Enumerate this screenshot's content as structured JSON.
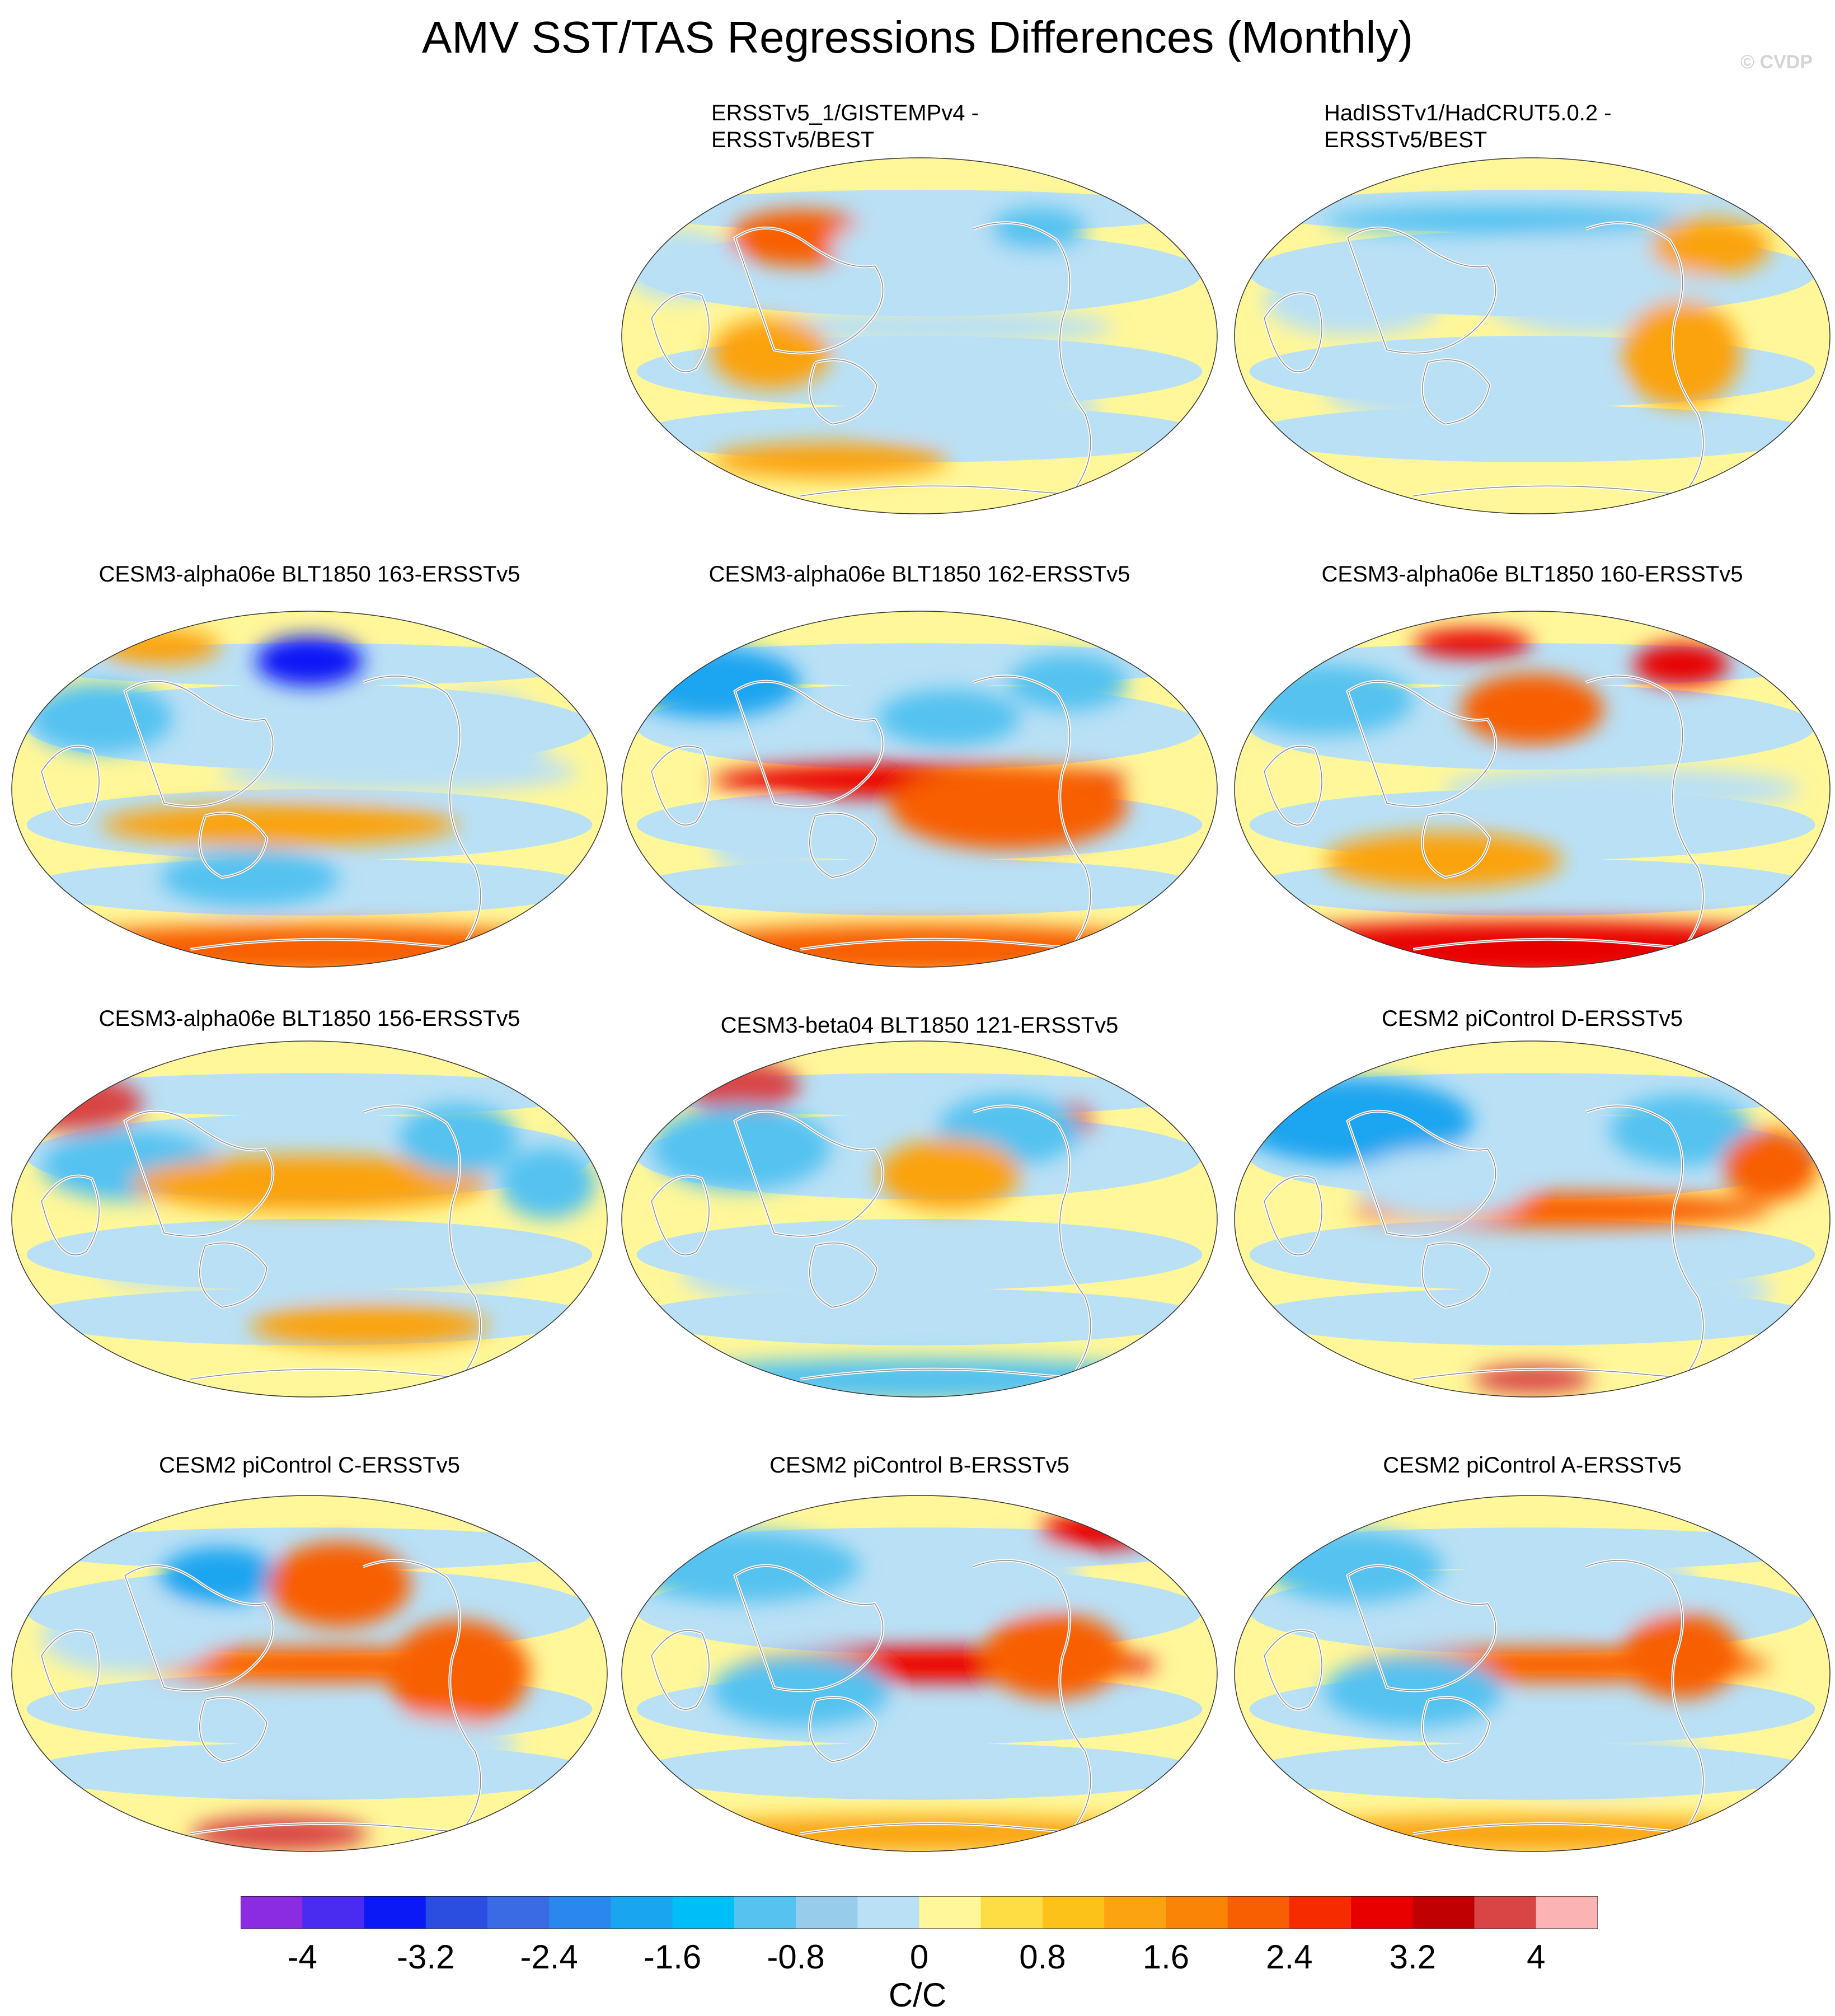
{
  "title": "AMV SST/TAS Regressions Differences (Monthly)",
  "watermark": "© CVDP",
  "panels": [
    {
      "title_line1": "ERSSTv5_1/GISTEMPv4 -",
      "title_line2": "ERSSTv5/BEST",
      "blobs": [
        [
          -0.4,
          0.55,
          0.12,
          0.08,
          1.6
        ],
        [
          -0.1,
          0.5,
          0.1,
          0.07,
          -0.8
        ],
        [
          0.3,
          0.4,
          0.15,
          0.1,
          -0.8
        ],
        [
          0.05,
          0.05,
          0.3,
          0.05,
          -0.8
        ],
        [
          -0.5,
          -0.1,
          0.1,
          0.1,
          0.8
        ],
        [
          0.4,
          0.6,
          0.08,
          0.06,
          -1.6
        ],
        [
          -0.8,
          0.4,
          0.1,
          0.1,
          -0.8
        ],
        [
          0.2,
          -0.4,
          0.2,
          0.08,
          -0.8
        ],
        [
          -0.3,
          -0.7,
          0.2,
          0.05,
          0.8
        ]
      ]
    },
    {
      "title_line1": "HadISSTv1/HadCRUT5.0.2 -",
      "title_line2": "ERSSTv5/BEST",
      "blobs": [
        [
          -0.6,
          0.2,
          0.15,
          0.1,
          -0.8
        ],
        [
          0.2,
          0.3,
          0.2,
          0.15,
          -0.8
        ],
        [
          -0.2,
          -0.3,
          0.25,
          0.1,
          -0.8
        ],
        [
          0.5,
          -0.1,
          0.1,
          0.15,
          0.8
        ],
        [
          -0.1,
          0.65,
          0.3,
          0.04,
          -1.6
        ],
        [
          0.6,
          0.5,
          0.1,
          0.08,
          0.8
        ]
      ]
    },
    {
      "title_line1": "CESM3-alpha06e BLT1850 163-ERSSTv5",
      "title_line2": "",
      "blobs": [
        [
          0.0,
          0.72,
          0.09,
          0.07,
          -4.0
        ],
        [
          -0.7,
          0.4,
          0.12,
          0.1,
          -1.6
        ],
        [
          0.3,
          0.1,
          0.3,
          0.06,
          -0.8
        ],
        [
          -0.1,
          -0.2,
          0.3,
          0.06,
          0.8
        ],
        [
          0.0,
          -0.9,
          0.5,
          0.07,
          1.6
        ],
        [
          -0.5,
          0.8,
          0.1,
          0.05,
          0.8
        ],
        [
          0.6,
          0.3,
          0.1,
          0.12,
          -0.8
        ],
        [
          -0.2,
          -0.5,
          0.15,
          0.08,
          -1.6
        ]
      ]
    },
    {
      "title_line1": "CESM3-alpha06e BLT1850 162-ERSSTv5",
      "title_line2": "",
      "blobs": [
        [
          -0.7,
          0.6,
          0.15,
          0.1,
          -2.4
        ],
        [
          0.0,
          0.05,
          0.35,
          0.05,
          2.4
        ],
        [
          0.3,
          -0.1,
          0.2,
          0.12,
          1.6
        ],
        [
          0.1,
          0.4,
          0.12,
          0.08,
          -1.6
        ],
        [
          0.0,
          -0.9,
          0.45,
          0.07,
          1.6
        ],
        [
          0.5,
          0.6,
          0.1,
          0.08,
          -1.6
        ],
        [
          -0.5,
          -0.3,
          0.1,
          0.1,
          -0.8
        ]
      ]
    },
    {
      "title_line1": "CESM3-alpha06e BLT1850 160-ERSSTv5",
      "title_line2": "",
      "blobs": [
        [
          0.0,
          -0.9,
          0.55,
          0.08,
          2.4
        ],
        [
          0.0,
          0.45,
          0.12,
          0.1,
          1.6
        ],
        [
          -0.7,
          0.5,
          0.15,
          0.1,
          -1.6
        ],
        [
          0.5,
          0.7,
          0.08,
          0.06,
          2.4
        ],
        [
          0.3,
          0.0,
          0.3,
          0.06,
          -0.8
        ],
        [
          -0.3,
          -0.4,
          0.2,
          0.08,
          0.8
        ],
        [
          -0.2,
          0.82,
          0.1,
          0.04,
          2.4
        ]
      ]
    },
    {
      "title_line1": "CESM3-alpha06e BLT1850 156-ERSSTv5",
      "title_line2": "",
      "blobs": [
        [
          -0.8,
          0.65,
          0.12,
          0.08,
          3.2
        ],
        [
          -0.6,
          0.3,
          0.15,
          0.1,
          -1.6
        ],
        [
          0.0,
          0.2,
          0.3,
          0.08,
          0.8
        ],
        [
          0.5,
          0.45,
          0.1,
          0.1,
          -1.6
        ],
        [
          0.0,
          -0.3,
          0.35,
          0.06,
          -0.8
        ],
        [
          0.8,
          0.2,
          0.08,
          0.1,
          -1.6
        ],
        [
          0.2,
          -0.6,
          0.2,
          0.06,
          0.8
        ]
      ]
    },
    {
      "title_line1": "CESM3-beta04 BLT1850 121-ERSSTv5",
      "title_line2": "",
      "blobs": [
        [
          -0.6,
          0.75,
          0.1,
          0.07,
          3.2
        ],
        [
          -0.6,
          0.4,
          0.15,
          0.12,
          -1.6
        ],
        [
          0.5,
          0.55,
          0.04,
          0.05,
          3.2
        ],
        [
          0.3,
          0.5,
          0.12,
          0.1,
          -1.6
        ],
        [
          0.1,
          0.25,
          0.12,
          0.1,
          0.8
        ],
        [
          0.0,
          -0.9,
          0.45,
          0.06,
          -1.6
        ],
        [
          -0.3,
          -0.3,
          0.25,
          0.1,
          -0.8
        ]
      ]
    },
    {
      "title_line1": "CESM2 piControl D-ERSSTv5",
      "title_line2": "",
      "blobs": [
        [
          -0.6,
          0.55,
          0.2,
          0.12,
          -2.4
        ],
        [
          0.1,
          0.05,
          0.35,
          0.05,
          1.6
        ],
        [
          0.5,
          0.5,
          0.12,
          0.1,
          -1.6
        ],
        [
          0.0,
          -0.9,
          0.1,
          0.04,
          3.2
        ],
        [
          -0.3,
          0.2,
          0.15,
          0.1,
          -0.8
        ],
        [
          0.4,
          -0.4,
          0.2,
          0.08,
          -0.8
        ],
        [
          0.8,
          0.3,
          0.08,
          0.1,
          1.6
        ]
      ]
    },
    {
      "title_line1": "CESM2 piControl C-ERSSTv5",
      "title_line2": "",
      "blobs": [
        [
          -0.3,
          0.55,
          0.1,
          0.08,
          -2.4
        ],
        [
          0.1,
          0.5,
          0.12,
          0.12,
          1.6
        ],
        [
          0.05,
          0.05,
          0.35,
          0.05,
          1.6
        ],
        [
          0.5,
          0.0,
          0.12,
          0.15,
          1.6
        ],
        [
          -0.1,
          -0.9,
          0.15,
          0.05,
          3.2
        ],
        [
          -0.6,
          0.2,
          0.15,
          0.1,
          -0.8
        ],
        [
          0.3,
          -0.4,
          0.2,
          0.08,
          -0.8
        ]
      ]
    },
    {
      "title_line1": "CESM2 piControl B-ERSSTv5",
      "title_line2": "",
      "blobs": [
        [
          -0.6,
          0.6,
          0.2,
          0.1,
          -1.6
        ],
        [
          0.1,
          0.05,
          0.35,
          0.05,
          2.4
        ],
        [
          0.45,
          0.1,
          0.12,
          0.12,
          1.6
        ],
        [
          -0.4,
          -0.1,
          0.15,
          0.1,
          -1.6
        ],
        [
          0.0,
          -0.9,
          0.45,
          0.05,
          0.8
        ],
        [
          0.3,
          0.55,
          0.12,
          0.1,
          -0.8
        ],
        [
          0.6,
          0.8,
          0.1,
          0.05,
          2.4
        ]
      ]
    },
    {
      "title_line1": "CESM2 piControl A-ERSSTv5",
      "title_line2": "",
      "blobs": [
        [
          -0.6,
          0.6,
          0.15,
          0.1,
          -1.6
        ],
        [
          0.1,
          0.05,
          0.35,
          0.05,
          1.6
        ],
        [
          0.5,
          0.1,
          0.1,
          0.12,
          1.6
        ],
        [
          -0.4,
          -0.1,
          0.15,
          0.1,
          -1.6
        ],
        [
          0.0,
          -0.9,
          0.45,
          0.05,
          0.8
        ],
        [
          0.3,
          0.5,
          0.12,
          0.1,
          -0.8
        ],
        [
          0.2,
          -0.5,
          0.2,
          0.08,
          -0.8
        ]
      ]
    }
  ],
  "colorbar": {
    "levels": [
      -4.8,
      -4.4,
      -4,
      -3.6,
      -3.2,
      -2.8,
      -2.4,
      -2,
      -1.6,
      -1.2,
      -0.8,
      -0.4,
      0,
      0.4,
      0.8,
      1.2,
      1.6,
      2,
      2.4,
      2.8,
      3.2,
      3.6,
      4,
      4.4
    ],
    "colors": [
      "#8b2be2",
      "#4a2cf0",
      "#0a19f5",
      "#2b4de0",
      "#3a6ae4",
      "#2a87ee",
      "#1aa5f0",
      "#00bef7",
      "#55c2f0",
      "#97cdeb",
      "#b9e0f5",
      "#fff799",
      "#fedd44",
      "#fdc21a",
      "#fba310",
      "#f98406",
      "#f85e02",
      "#f62b00",
      "#e80000",
      "#c00000",
      "#d94444",
      "#fcb3b3"
    ],
    "tick_labels": [
      "-4",
      "-3.2",
      "-2.4",
      "-1.6",
      "-0.8",
      "0",
      "0.8",
      "1.6",
      "2.4",
      "3.2",
      "4"
    ],
    "units": "C/C"
  }
}
